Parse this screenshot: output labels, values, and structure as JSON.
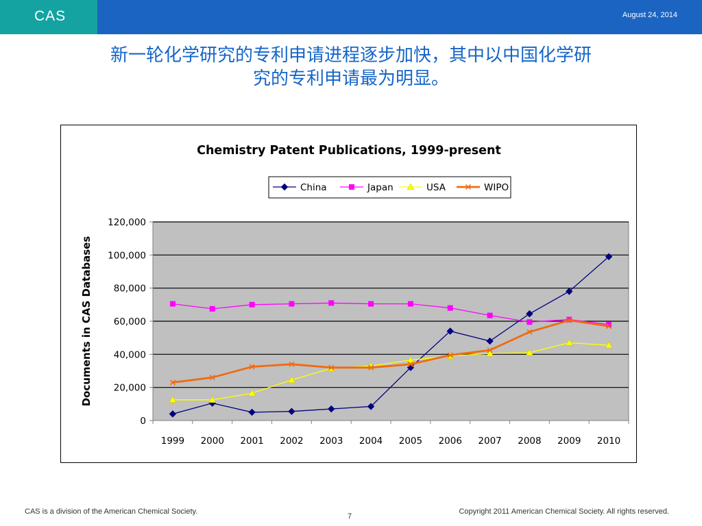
{
  "header": {
    "logo": "CAS",
    "date": "August 24, 2014"
  },
  "slide": {
    "title_line1": "新一轮化学研究的专利申请进程逐步加快，其中以中国化学研",
    "title_line2": "究的专利申请最为明显。"
  },
  "footer": {
    "left": "CAS is a division of the American Chemical Society.",
    "page": "7",
    "right": "Copyright 2011 American Chemical Society. All rights reserved."
  },
  "chart_data": {
    "type": "line",
    "title": "Chemistry Patent Publications, 1999-present",
    "ylabel": "Documents in CAS Databases",
    "xlabel": "",
    "categories": [
      "1999",
      "2000",
      "2001",
      "2002",
      "2003",
      "2004",
      "2005",
      "2006",
      "2007",
      "2008",
      "2009",
      "2010"
    ],
    "ylim": [
      0,
      120000
    ],
    "yticks": [
      0,
      20000,
      40000,
      60000,
      80000,
      100000,
      120000
    ],
    "ytick_labels": [
      "0",
      "20,000",
      "40,000",
      "60,000",
      "80,000",
      "100,000",
      "120,000"
    ],
    "grid": true,
    "legend_position": "top-right",
    "plot_background": "#c0c0c0",
    "series": [
      {
        "name": "China",
        "color": "#000080",
        "marker": "diamond",
        "values": [
          4000,
          10500,
          5000,
          5500,
          7000,
          8500,
          32000,
          54000,
          48000,
          64500,
          78000,
          99000
        ]
      },
      {
        "name": "Japan",
        "color": "#ff00ff",
        "marker": "square",
        "values": [
          70500,
          67500,
          70000,
          70500,
          71000,
          70500,
          70500,
          68000,
          63500,
          59500,
          61000,
          58000
        ]
      },
      {
        "name": "USA",
        "color": "#ffff00",
        "marker": "triangle",
        "values": [
          12500,
          12500,
          16500,
          24500,
          31500,
          33000,
          36500,
          39000,
          40500,
          41000,
          47000,
          45500
        ]
      },
      {
        "name": "WIPO",
        "color": "#f06a10",
        "marker": "x",
        "values": [
          23000,
          26000,
          32500,
          34000,
          32000,
          32000,
          34000,
          39500,
          42500,
          53500,
          60500,
          57000
        ]
      }
    ]
  }
}
